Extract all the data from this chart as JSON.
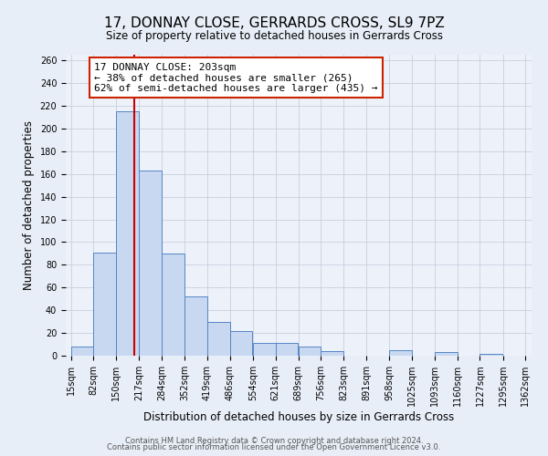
{
  "title": "17, DONNAY CLOSE, GERRARDS CROSS, SL9 7PZ",
  "subtitle": "Size of property relative to detached houses in Gerrards Cross",
  "xlabel": "Distribution of detached houses by size in Gerrards Cross",
  "ylabel": "Number of detached properties",
  "bar_color": "#c8d8f0",
  "bar_edge_color": "#5585c5",
  "bar_left_edges": [
    15,
    82,
    150,
    217,
    284,
    352,
    419,
    486,
    554,
    621,
    689,
    756,
    823,
    891,
    958,
    1025,
    1093,
    1160,
    1227,
    1295
  ],
  "bar_heights": [
    8,
    91,
    215,
    163,
    90,
    52,
    30,
    22,
    11,
    11,
    8,
    4,
    0,
    0,
    5,
    0,
    3,
    0,
    2,
    0
  ],
  "bin_width": 67,
  "tick_labels": [
    "15sqm",
    "82sqm",
    "150sqm",
    "217sqm",
    "284sqm",
    "352sqm",
    "419sqm",
    "486sqm",
    "554sqm",
    "621sqm",
    "689sqm",
    "756sqm",
    "823sqm",
    "891sqm",
    "958sqm",
    "1025sqm",
    "1093sqm",
    "1160sqm",
    "1227sqm",
    "1295sqm",
    "1362sqm"
  ],
  "tick_positions": [
    15,
    82,
    150,
    217,
    284,
    352,
    419,
    486,
    554,
    621,
    689,
    756,
    823,
    891,
    958,
    1025,
    1093,
    1160,
    1227,
    1295,
    1362
  ],
  "ylim": [
    0,
    265
  ],
  "xlim": [
    0,
    1380
  ],
  "yticks": [
    0,
    20,
    40,
    60,
    80,
    100,
    120,
    140,
    160,
    180,
    200,
    220,
    240,
    260
  ],
  "property_line_x": 203,
  "property_line_color": "#cc0000",
  "annotation_line1": "17 DONNAY CLOSE: 203sqm",
  "annotation_line2": "← 38% of detached houses are smaller (265)",
  "annotation_line3": "62% of semi-detached houses are larger (435) →",
  "annotation_box_color": "#ffffff",
  "annotation_box_edge": "#cc2200",
  "bg_color": "#e8eef8",
  "plot_bg_color": "#edf2fa",
  "grid_color": "#c8cede",
  "footer_line1": "Contains HM Land Registry data © Crown copyright and database right 2024.",
  "footer_line2": "Contains public sector information licensed under the Open Government Licence v3.0.",
  "title_fontsize": 11,
  "subtitle_fontsize": 8.5,
  "axis_label_fontsize": 8.5,
  "tick_fontsize": 7,
  "annotation_fontsize": 8,
  "footer_fontsize": 6
}
